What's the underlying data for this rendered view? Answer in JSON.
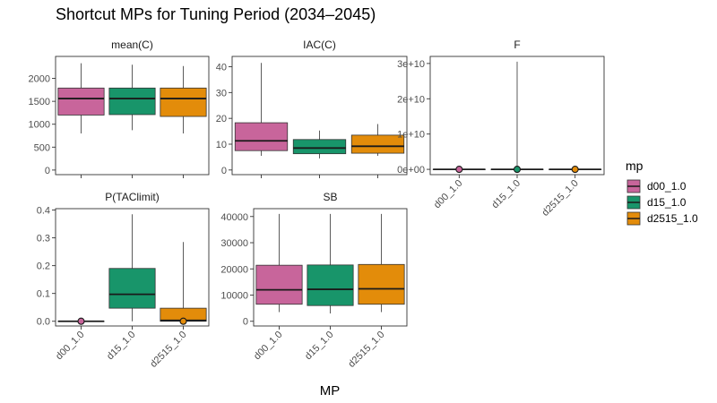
{
  "title": "Shortcut MPs for Tuning Period (2034–2045)",
  "xlabel": "MP",
  "legend": {
    "title": "mp"
  },
  "colors": {
    "d00_1.0": "#c8659b",
    "d15_1.0": "#18956a",
    "d2515_1.0": "#e38c0a"
  },
  "chart_data": [
    {
      "type": "box",
      "panel": "mean(C)",
      "categories": [
        "d00_1.0",
        "d15_1.0",
        "d2515_1.0"
      ],
      "ylim": [
        -100,
        2480
      ],
      "yticks": [
        0,
        500,
        1000,
        1500,
        2000
      ],
      "ytick_labels": [
        "0",
        "500",
        "1000",
        "1500",
        "2000"
      ],
      "show_x_labels": false,
      "boxes": [
        {
          "name": "d00_1.0",
          "min": 800,
          "q1": 1200,
          "median": 1560,
          "q3": 1790,
          "max": 2330
        },
        {
          "name": "d15_1.0",
          "min": 870,
          "q1": 1210,
          "median": 1560,
          "q3": 1790,
          "max": 2300
        },
        {
          "name": "d2515_1.0",
          "min": 800,
          "q1": 1170,
          "median": 1560,
          "q3": 1790,
          "max": 2270
        }
      ]
    },
    {
      "type": "box",
      "panel": "IAC(C)",
      "categories": [
        "d00_1.0",
        "d15_1.0",
        "d2515_1.0"
      ],
      "ylim": [
        -1.8,
        44
      ],
      "yticks": [
        0,
        10,
        20,
        30,
        40
      ],
      "ytick_labels": [
        "0",
        "10",
        "20",
        "30",
        "40"
      ],
      "show_x_labels": false,
      "boxes": [
        {
          "name": "d00_1.0",
          "min": 5.5,
          "q1": 7.5,
          "median": 11.3,
          "q3": 18.3,
          "max": 41.5
        },
        {
          "name": "d15_1.0",
          "min": 4.5,
          "q1": 6.3,
          "median": 8.5,
          "q3": 11.8,
          "max": 15.3
        },
        {
          "name": "d2515_1.0",
          "min": 5.5,
          "q1": 6.5,
          "median": 9.2,
          "q3": 13.5,
          "max": 17.8
        }
      ]
    },
    {
      "type": "box",
      "panel": "F",
      "categories": [
        "d00_1.0",
        "d15_1.0",
        "d2515_1.0"
      ],
      "ylim": [
        -1500000000.0,
        32000000000.0
      ],
      "yticks": [
        0,
        10000000000.0,
        20000000000.0,
        30000000000.0
      ],
      "ytick_labels": [
        "0e+00",
        "1e+10",
        "2e+10",
        "3e+10"
      ],
      "show_x_labels": true,
      "boxes": [
        {
          "name": "d00_1.0",
          "min": 0,
          "q1": 0,
          "median": 0,
          "q3": 0,
          "max": 0,
          "outliers": [
            0
          ]
        },
        {
          "name": "d15_1.0",
          "min": 0,
          "q1": 0,
          "median": 0,
          "q3": 0,
          "max": 30500000000.0,
          "outliers": [
            0
          ]
        },
        {
          "name": "d2515_1.0",
          "min": 0,
          "q1": 0,
          "median": 0,
          "q3": 0,
          "max": 0,
          "outliers": [
            0
          ]
        }
      ]
    },
    {
      "type": "box",
      "panel": "P(TAClimit)",
      "categories": [
        "d00_1.0",
        "d15_1.0",
        "d2515_1.0"
      ],
      "ylim": [
        -0.017,
        0.405
      ],
      "yticks": [
        0,
        0.1,
        0.2,
        0.3,
        0.4
      ],
      "ytick_labels": [
        "0.0",
        "0.1",
        "0.2",
        "0.3",
        "0.4"
      ],
      "show_x_labels": true,
      "boxes": [
        {
          "name": "d00_1.0",
          "min": 0,
          "q1": 0,
          "median": 0,
          "q3": 0,
          "max": 0,
          "outliers": [
            0
          ]
        },
        {
          "name": "d15_1.0",
          "min": 0,
          "q1": 0.047,
          "median": 0.097,
          "q3": 0.19,
          "max": 0.385
        },
        {
          "name": "d2515_1.0",
          "min": 0,
          "q1": 0,
          "median": 0.003,
          "q3": 0.047,
          "max": 0.285,
          "outliers": [
            0
          ]
        }
      ]
    },
    {
      "type": "box",
      "panel": "SB",
      "categories": [
        "d00_1.0",
        "d15_1.0",
        "d2515_1.0"
      ],
      "ylim": [
        -1800,
        43000
      ],
      "yticks": [
        0,
        10000,
        20000,
        30000,
        40000
      ],
      "ytick_labels": [
        "0",
        "10000",
        "20000",
        "30000",
        "40000"
      ],
      "show_x_labels": true,
      "boxes": [
        {
          "name": "d00_1.0",
          "min": 3500,
          "q1": 6500,
          "median": 12000,
          "q3": 21400,
          "max": 41000
        },
        {
          "name": "d15_1.0",
          "min": 3000,
          "q1": 6000,
          "median": 12200,
          "q3": 21500,
          "max": 41000
        },
        {
          "name": "d2515_1.0",
          "min": 3500,
          "q1": 6500,
          "median": 12400,
          "q3": 21700,
          "max": 41000
        }
      ]
    }
  ]
}
